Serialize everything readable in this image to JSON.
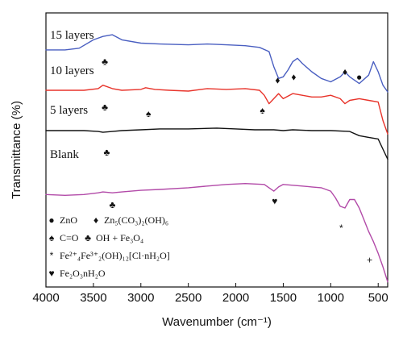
{
  "chart_data": {
    "type": "line",
    "xlabel": "Wavenumber (cm⁻¹)",
    "ylabel": "Transmittance (%)",
    "xlim": [
      4000,
      400
    ],
    "x_reversed": true,
    "x_ticks": [
      "4000",
      "3500",
      "3000",
      "2500",
      "2000",
      "1500",
      "1000",
      "500"
    ],
    "y_ticks_shown": false,
    "series": [
      {
        "name": "15 layers",
        "color": "#4a5fc1",
        "x": [
          4000,
          3800,
          3650,
          3500,
          3400,
          3300,
          3200,
          3000,
          2800,
          2500,
          2300,
          2100,
          1900,
          1750,
          1650,
          1600,
          1550,
          1500,
          1450,
          1400,
          1350,
          1300,
          1200,
          1100,
          1000,
          900,
          850,
          800,
          700,
          600,
          550,
          500,
          450,
          400
        ],
        "y": [
          26,
          26,
          27,
          32,
          34,
          35,
          32,
          30,
          29.5,
          29,
          29.5,
          29,
          28.5,
          27.5,
          25,
          16,
          9,
          10,
          14,
          19,
          21,
          18,
          13,
          9,
          7,
          10,
          13,
          10,
          6,
          11,
          19,
          13,
          5,
          1
        ]
      },
      {
        "name": "10 layers",
        "color": "#e8332a",
        "x": [
          4000,
          3800,
          3600,
          3450,
          3400,
          3300,
          3200,
          3000,
          2950,
          2900,
          2850,
          2700,
          2500,
          2300,
          2100,
          1900,
          1750,
          1700,
          1650,
          1600,
          1550,
          1500,
          1400,
          1300,
          1200,
          1100,
          1000,
          900,
          850,
          800,
          700,
          600,
          500,
          450,
          400
        ],
        "y": [
          2,
          2,
          2,
          3,
          5,
          3,
          2,
          2.5,
          3.5,
          3,
          2.5,
          2,
          1.5,
          3,
          2.5,
          3,
          2,
          -1,
          -6,
          -3,
          0,
          -3,
          0,
          -1,
          -2,
          -2,
          -1,
          -3,
          -6,
          -4,
          -3,
          -4,
          -5,
          -16,
          -24
        ]
      },
      {
        "name": "5 layers",
        "color": "#111111",
        "x": [
          4000,
          3800,
          3600,
          3450,
          3400,
          3300,
          3200,
          3000,
          2800,
          2500,
          2200,
          2000,
          1800,
          1600,
          1500,
          1400,
          1200,
          1000,
          800,
          700,
          600,
          500,
          450,
          400
        ],
        "y": [
          -22,
          -22,
          -22,
          -22.5,
          -23,
          -22.5,
          -22,
          -21.5,
          -21,
          -21,
          -20.5,
          -21,
          -21.5,
          -21.5,
          -22,
          -21.5,
          -22,
          -22,
          -22.5,
          -25,
          -26,
          -27,
          -33,
          -39
        ]
      },
      {
        "name": "Blank",
        "color": "#b24aa8",
        "x": [
          4000,
          3800,
          3600,
          3450,
          3400,
          3300,
          3200,
          3000,
          2800,
          2500,
          2300,
          2100,
          1900,
          1700,
          1600,
          1550,
          1500,
          1400,
          1300,
          1200,
          1100,
          1000,
          950,
          900,
          850,
          800,
          750,
          700,
          650,
          600,
          550,
          500,
          450,
          400
        ],
        "y": [
          -60,
          -60.5,
          -60,
          -59,
          -58.5,
          -59,
          -58.5,
          -57.5,
          -57,
          -56,
          -55,
          -54,
          -53.5,
          -54,
          -58,
          -55.5,
          -54,
          -54.5,
          -55,
          -55.5,
          -56,
          -58,
          -62,
          -67,
          -68,
          -63,
          -63,
          -68,
          -75,
          -82,
          -88,
          -95,
          -103,
          -112
        ]
      }
    ],
    "curve_labels": [
      "15 layers",
      "10 layers",
      "5 layers",
      "Blank"
    ],
    "annotations": [
      {
        "symbol": "♣",
        "x": 3380,
        "y": 19
      },
      {
        "symbol": "♦",
        "x": 1560,
        "y": 8
      },
      {
        "symbol": "♦",
        "x": 1390,
        "y": 10
      },
      {
        "symbol": "♦",
        "x": 850,
        "y": 13
      },
      {
        "symbol": "●",
        "x": 700,
        "y": 10
      },
      {
        "symbol": "♣",
        "x": 3380,
        "y": -8
      },
      {
        "symbol": "♠",
        "x": 2920,
        "y": -12
      },
      {
        "symbol": "♠",
        "x": 1720,
        "y": -10
      },
      {
        "symbol": "♣",
        "x": 3360,
        "y": -35
      },
      {
        "symbol": "♣",
        "x": 3300,
        "y": -66
      },
      {
        "symbol": "♥",
        "x": 1590,
        "y": -64
      },
      {
        "symbol": "*",
        "x": 890,
        "y": -80
      },
      {
        "symbol": "+",
        "x": 590,
        "y": -99
      }
    ],
    "legend": {
      "placement": "bottom-left",
      "entries": [
        {
          "symbol": "●",
          "text": "ZnO"
        },
        {
          "symbol": "♦",
          "text": "Zn₅(CO₃)₂(OH)₆"
        },
        {
          "symbol": "♠",
          "text": "C=O"
        },
        {
          "symbol": "♣",
          "text": "OH + Fe₃O₄"
        },
        {
          "symbol": "*",
          "text": "Fe²⁺₄Fe³⁺₂(OH)₁₂[Cl·nH₂O]"
        },
        {
          "symbol": "♥",
          "text": "Fe₂O₃nH₂O"
        }
      ]
    }
  }
}
